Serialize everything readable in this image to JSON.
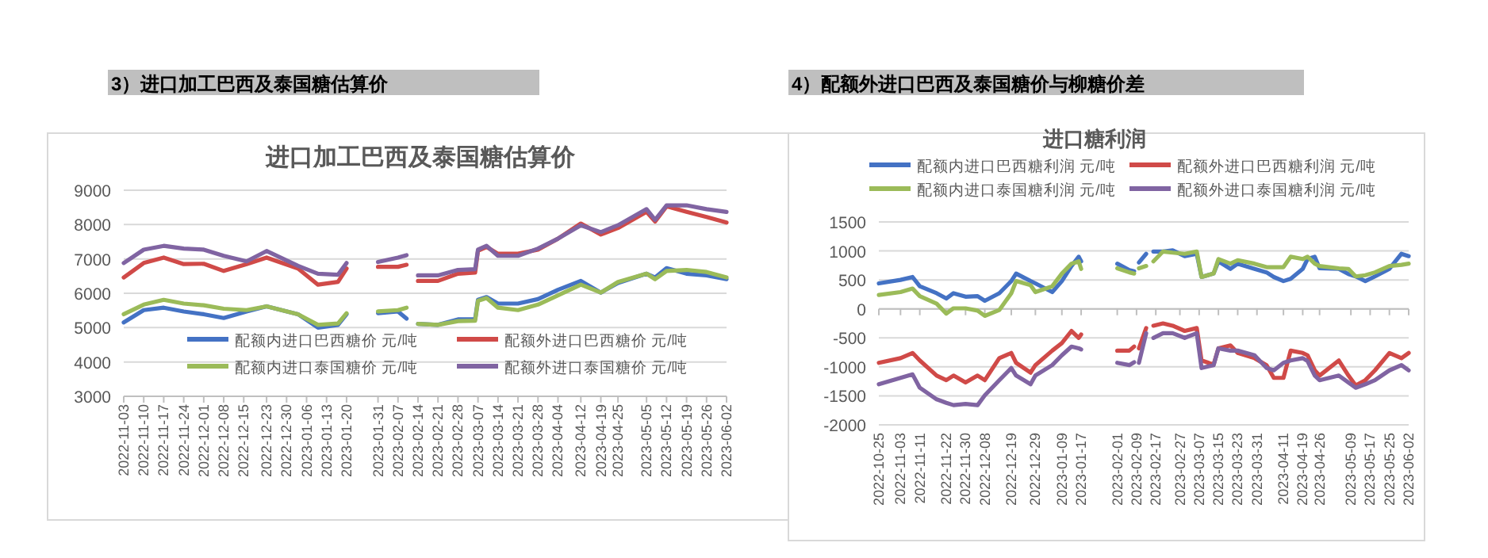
{
  "chart_data": [
    {
      "type": "line",
      "title": "进口加工巴西及泰国糖估算价",
      "annotations": [
        "3）进口加工巴西及泰国糖估算价"
      ],
      "x": [
        "2022-11-03",
        "2022-11-10",
        "2022-11-17",
        "2022-11-24",
        "2022-12-01",
        "2022-12-08",
        "2022-12-16",
        "2022-12-23",
        "2023-01-03",
        "2023-01-10",
        "2023-01-17",
        "2023-01-20",
        "2023-01-25",
        "2023-01-31",
        "2023-02-07",
        "2023-02-10",
        "2023-02-12",
        "2023-02-14",
        "2023-02-21",
        "2023-02-28",
        "2023-03-06",
        "2023-03-07",
        "2023-03-10",
        "2023-03-14",
        "2023-03-21",
        "2023-03-28",
        "2023-04-04",
        "2023-04-12",
        "2023-04-19",
        "2023-04-25",
        "2023-05-05",
        "2023-05-08",
        "2023-05-12",
        "2023-05-19",
        "2023-05-26",
        "2023-06-02"
      ],
      "series": [
        {
          "name": "配额内进口巴西糖价 元/吨",
          "color": "#4472c4",
          "values": [
            5150,
            5510,
            5580,
            5470,
            5390,
            5280,
            5470,
            5620,
            5390,
            5000,
            5080,
            5390,
            null,
            5420,
            5470,
            5260,
            null,
            5110,
            5080,
            5240,
            5250,
            5810,
            5890,
            5700,
            5700,
            5830,
            6100,
            6360,
            6020,
            6300,
            6570,
            6460,
            6730,
            6570,
            6520,
            6410
          ]
        },
        {
          "name": "配额外进口巴西糖价 元/吨",
          "color": "#d04a48",
          "values": [
            6460,
            6880,
            7040,
            6850,
            6860,
            6650,
            6850,
            7040,
            6720,
            6250,
            6330,
            6720,
            null,
            6770,
            6770,
            6830,
            null,
            6360,
            6360,
            6570,
            6600,
            7240,
            7350,
            7150,
            7150,
            7270,
            7590,
            8030,
            7710,
            7900,
            8370,
            8090,
            8530,
            8370,
            8220,
            8060
          ]
        },
        {
          "name": "配额内进口泰国糖价 元/吨",
          "color": "#9bbb59",
          "values": [
            5390,
            5670,
            5810,
            5700,
            5650,
            5550,
            5510,
            5620,
            5390,
            5080,
            5120,
            5420,
            null,
            5470,
            5510,
            5580,
            null,
            5110,
            5080,
            5190,
            5200,
            5780,
            5860,
            5580,
            5510,
            5670,
            5940,
            6250,
            6020,
            6330,
            6570,
            6410,
            6650,
            6680,
            6620,
            6460
          ]
        },
        {
          "name": "配额外进口泰国糖价 元/吨",
          "color": "#8064a2",
          "values": [
            6880,
            7270,
            7380,
            7300,
            7270,
            7090,
            6930,
            7230,
            6800,
            6570,
            6540,
            6880,
            null,
            6910,
            7040,
            7110,
            null,
            6520,
            6520,
            6680,
            6700,
            7270,
            7380,
            7090,
            7090,
            7300,
            7590,
            7980,
            7780,
            7980,
            8450,
            8140,
            8560,
            8560,
            8450,
            8370
          ]
        }
      ],
      "xlim": [
        "2022-11-03",
        "2023-06-02"
      ],
      "xticks": [
        "2022-11-03",
        "2022-11-10",
        "2022-11-17",
        "2022-11-24",
        "2022-12-01",
        "2022-12-08",
        "2022-12-15",
        "2022-12-23",
        "2022-12-30",
        "2023-01-06",
        "2023-01-13",
        "2023-01-20",
        "2023-01-31",
        "2023-02-07",
        "2023-02-14",
        "2023-02-21",
        "2023-02-28",
        "2023-03-07",
        "2023-03-14",
        "2023-03-21",
        "2023-03-28",
        "2023-04-04",
        "2023-04-12",
        "2023-04-19",
        "2023-04-25",
        "2023-05-05",
        "2023-05-12",
        "2023-05-19",
        "2023-05-26",
        "2023-06-02"
      ],
      "ylim": [
        3000,
        9000
      ],
      "yticks": [
        3000,
        4000,
        5000,
        6000,
        7000,
        8000,
        9000
      ],
      "grid": "y",
      "legend": "bottom"
    },
    {
      "type": "line",
      "title": "进口糖利润",
      "annotations": [
        "4）配额外进口巴西及泰国糖价与柳糖价差"
      ],
      "x": [
        "2022-10-25",
        "2022-11-03",
        "2022-11-08",
        "2022-11-11",
        "2022-11-18",
        "2022-11-22",
        "2022-11-25",
        "2022-11-30",
        "2022-12-05",
        "2022-12-08",
        "2022-12-14",
        "2022-12-19",
        "2022-12-21",
        "2022-12-27",
        "2022-12-29",
        "2023-01-05",
        "2023-01-09",
        "2023-01-13",
        "2023-01-16",
        "2023-01-17",
        "2023-01-18",
        "2023-02-01",
        "2023-02-06",
        "2023-02-08",
        "2023-02-09",
        "2023-02-10",
        "2023-02-13",
        "2023-02-14",
        "2023-02-16",
        "2023-02-20",
        "2023-02-24",
        "2023-03-01",
        "2023-03-06",
        "2023-03-08",
        "2023-03-13",
        "2023-03-15",
        "2023-03-20",
        "2023-03-23",
        "2023-03-30",
        "2023-04-04",
        "2023-04-07",
        "2023-04-11",
        "2023-04-14",
        "2023-04-19",
        "2023-04-21",
        "2023-04-24",
        "2023-04-26",
        "2023-05-04",
        "2023-05-08",
        "2023-05-11",
        "2023-05-15",
        "2023-05-19",
        "2023-05-25",
        "2023-05-30",
        "2023-06-02"
      ],
      "series": [
        {
          "name": "配额内进口巴西糖利润 元/吨",
          "color": "#4472c4",
          "values": [
            440,
            500,
            550,
            390,
            270,
            180,
            270,
            210,
            220,
            140,
            270,
            480,
            610,
            480,
            440,
            290,
            480,
            740,
            900,
            820,
            null,
            780,
            670,
            650,
            null,
            800,
            950,
            null,
            990,
            990,
            1010,
            910,
            950,
            550,
            610,
            820,
            690,
            780,
            690,
            630,
            550,
            480,
            520,
            690,
            860,
            900,
            700,
            690,
            600,
            560,
            480,
            560,
            690,
            950,
            910
          ]
        },
        {
          "name": "配额外进口巴西糖利润 元/吨",
          "color": "#d04a48",
          "values": [
            -930,
            -850,
            -760,
            -890,
            -1150,
            -1230,
            -1150,
            -1270,
            -1150,
            -1230,
            -850,
            -760,
            -930,
            -1100,
            -970,
            -720,
            -590,
            -380,
            -500,
            -440,
            null,
            -720,
            -720,
            -650,
            null,
            -680,
            -330,
            null,
            -290,
            -250,
            -290,
            -380,
            -330,
            -890,
            -960,
            -680,
            -630,
            -760,
            -850,
            -970,
            -1190,
            -1190,
            -720,
            -760,
            -800,
            -1060,
            -1150,
            -890,
            -1150,
            -1320,
            -1230,
            -1060,
            -760,
            -850,
            -760
          ]
        },
        {
          "name": "配额内进口泰国糖利润 元/吨",
          "color": "#9bbb59",
          "values": [
            240,
            290,
            350,
            220,
            90,
            -80,
            10,
            10,
            -30,
            -120,
            -20,
            270,
            480,
            410,
            290,
            390,
            610,
            780,
            820,
            690,
            null,
            700,
            630,
            610,
            null,
            700,
            740,
            null,
            820,
            990,
            970,
            950,
            990,
            550,
            610,
            860,
            780,
            840,
            780,
            720,
            720,
            720,
            900,
            860,
            900,
            780,
            740,
            700,
            690,
            560,
            580,
            630,
            740,
            760,
            780
          ]
        },
        {
          "name": "配额外进口泰国糖利润 元/吨",
          "color": "#8064a2",
          "values": [
            -1300,
            -1190,
            -1130,
            -1360,
            -1560,
            -1620,
            -1660,
            -1640,
            -1660,
            -1490,
            -1230,
            -1020,
            -1150,
            -1300,
            -1150,
            -970,
            -800,
            -650,
            -680,
            -700,
            null,
            -930,
            -970,
            -920,
            null,
            -930,
            -420,
            null,
            -500,
            -420,
            -420,
            -500,
            -420,
            -1020,
            -970,
            -680,
            -720,
            -720,
            -800,
            -1020,
            -1060,
            -930,
            -890,
            -850,
            -900,
            -1150,
            -1230,
            -1150,
            -1270,
            -1360,
            -1300,
            -1230,
            -1060,
            -970,
            -1060
          ]
        }
      ],
      "xlim": [
        "2022-10-25",
        "2023-06-02"
      ],
      "xticks": [
        "2022-10-25",
        "2022-11-03",
        "2022-11-11",
        "2022-11-22",
        "2022-11-30",
        "2022-12-08",
        "2022-12-19",
        "2022-12-29",
        "2023-01-09",
        "2023-01-17",
        "2023-02-01",
        "2023-02-09",
        "2023-02-17",
        "2023-02-27",
        "2023-03-07",
        "2023-03-15",
        "2023-03-23",
        "2023-03-31",
        "2023-04-11",
        "2023-04-19",
        "2023-04-26",
        "2023-05-09",
        "2023-05-17",
        "2023-05-25",
        "2023-06-02"
      ],
      "ylim": [
        -2000,
        1500
      ],
      "yticks": [
        -2000,
        -1500,
        -1000,
        -500,
        0,
        500,
        1000,
        1500
      ],
      "grid": "y",
      "legend": "top"
    }
  ]
}
